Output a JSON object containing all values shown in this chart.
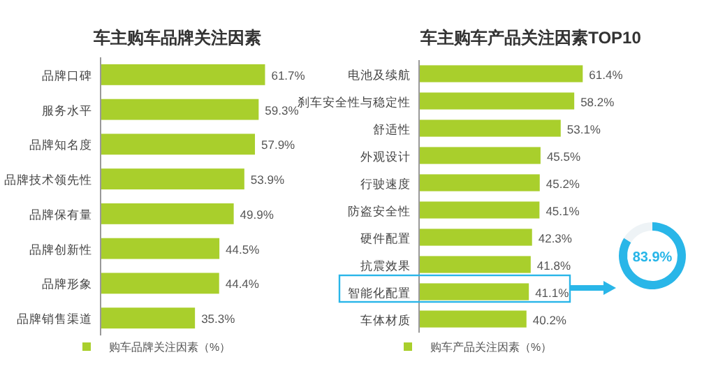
{
  "chart_data": [
    {
      "type": "bar",
      "orientation": "horizontal",
      "title": "车主购车品牌关注因素",
      "legend": "bottom",
      "categories": [
        "品牌口碑",
        "服务水平",
        "品牌知名度",
        "品牌技术领先性",
        "品牌保有量",
        "品牌创新性",
        "品牌形象",
        "品牌销售渠道"
      ],
      "series": [
        {
          "name": "购车品牌关注因素（%）",
          "color": "#a9cf2c",
          "values": [
            61.7,
            59.3,
            57.9,
            53.9,
            49.9,
            44.5,
            44.4,
            35.3
          ],
          "value_labels": [
            "61.7%",
            "59.3%",
            "57.9%",
            "53.9%",
            "49.9%",
            "44.5%",
            "44.4%",
            "35.3%"
          ]
        }
      ]
    },
    {
      "type": "bar",
      "orientation": "horizontal",
      "title": "车主购车产品关注因素TOP10",
      "legend": "bottom",
      "categories": [
        "电池及续航",
        "刹车安全性与稳定性",
        "舒适性",
        "外观设计",
        "行驶速度",
        "防盗安全性",
        "硬件配置",
        "抗震效果",
        "智能化配置",
        "车体材质"
      ],
      "series": [
        {
          "name": "购车产品关注因素（%）",
          "color": "#a9cf2c",
          "values": [
            61.4,
            58.2,
            53.1,
            45.5,
            45.2,
            45.1,
            42.3,
            41.8,
            41.1,
            40.2
          ],
          "value_labels": [
            "61.4%",
            "58.2%",
            "53.1%",
            "45.5%",
            "45.2%",
            "45.1%",
            "42.3%",
            "41.8%",
            "41.1%",
            "40.2%"
          ]
        }
      ]
    },
    {
      "type": "donut",
      "categories": [
        null,
        null
      ],
      "values": [
        83.9,
        16.1
      ],
      "colors": [
        "#29b6e8",
        "#eef3f6"
      ],
      "value_labels": [
        "83.9%",
        null
      ]
    }
  ]
}
